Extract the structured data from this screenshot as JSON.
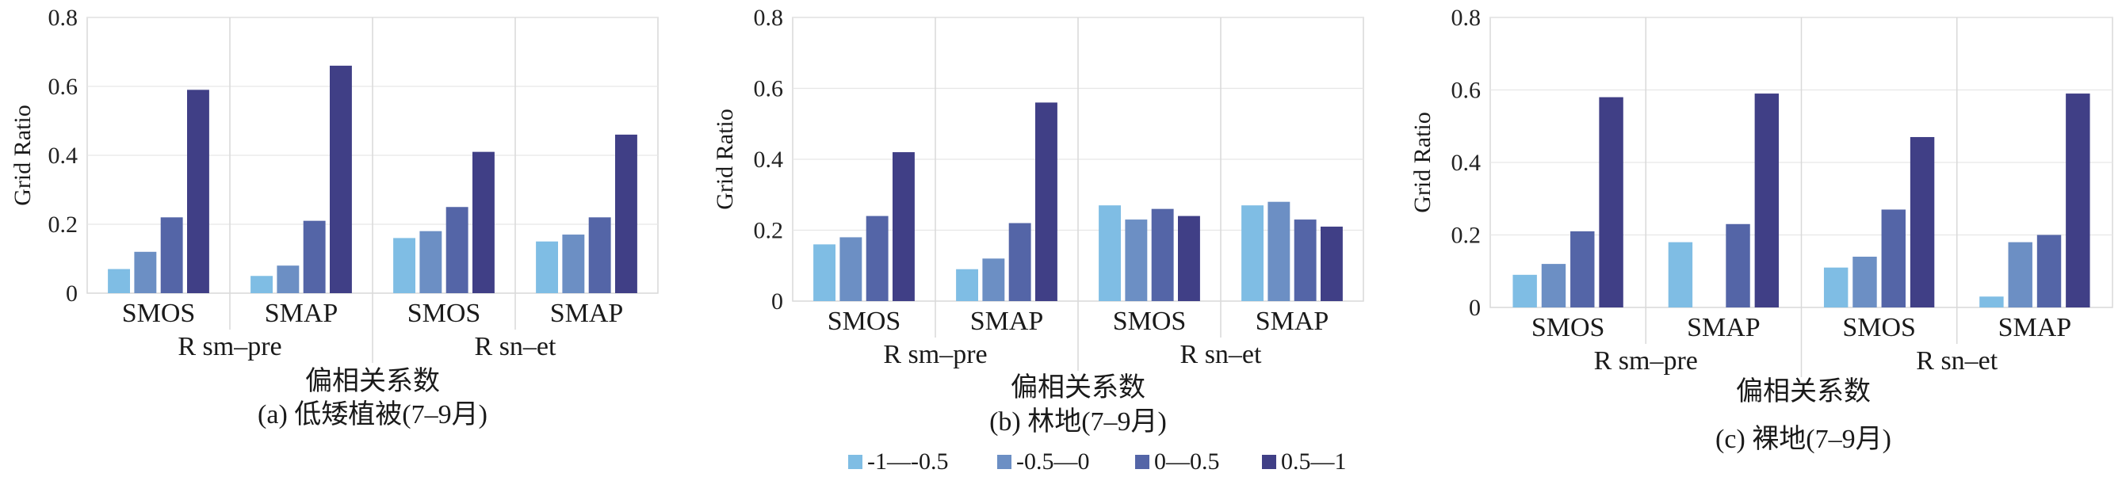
{
  "legend": {
    "entries": [
      {
        "label": "-1—-0.5",
        "color": "#7fbde4"
      },
      {
        "label": "-0.5—0",
        "color": "#6c8fc4"
      },
      {
        "label": "0—0.5",
        "color": "#5465a7"
      },
      {
        "label": "0.5—1",
        "color": "#403f86"
      }
    ]
  },
  "chart_data": [
    {
      "type": "bar",
      "caption_line1": "偏相关系数",
      "caption_line2": "(a) 低矮植被(7–9月)",
      "ylabel": "Grid Ratio",
      "ylim": [
        0,
        0.8
      ],
      "yticks": [
        "0",
        "0.2",
        "0.4",
        "0.6",
        "0.8"
      ],
      "categories": [
        "SMOS",
        "SMAP",
        "SMOS",
        "SMAP"
      ],
      "groups": [
        "R sm–pre",
        "R sn–et"
      ],
      "series": [
        {
          "name": "-1—-0.5",
          "values": [
            0.07,
            0.05,
            0.16,
            0.15
          ]
        },
        {
          "name": "-0.5—0",
          "values": [
            0.12,
            0.08,
            0.18,
            0.17
          ]
        },
        {
          "name": "0—0.5",
          "values": [
            0.22,
            0.21,
            0.25,
            0.22
          ]
        },
        {
          "name": "0.5—1",
          "values": [
            0.59,
            0.66,
            0.41,
            0.46
          ]
        }
      ]
    },
    {
      "type": "bar",
      "caption_line1": "偏相关系数",
      "caption_line2": "(b) 林地(7–9月)",
      "ylabel": "Grid Ratio",
      "ylim": [
        0,
        0.8
      ],
      "yticks": [
        "0",
        "0.2",
        "0.4",
        "0.6",
        "0.8"
      ],
      "categories": [
        "SMOS",
        "SMAP",
        "SMOS",
        "SMAP"
      ],
      "groups": [
        "R sm–pre",
        "R sn–et"
      ],
      "series": [
        {
          "name": "-1—-0.5",
          "values": [
            0.16,
            0.09,
            0.27,
            0.27
          ]
        },
        {
          "name": "-0.5—0",
          "values": [
            0.18,
            0.12,
            0.23,
            0.28
          ]
        },
        {
          "name": "0—0.5",
          "values": [
            0.24,
            0.22,
            0.26,
            0.23
          ]
        },
        {
          "name": "0.5—1",
          "values": [
            0.42,
            0.56,
            0.24,
            0.21
          ]
        }
      ]
    },
    {
      "type": "bar",
      "caption_line1": "偏相关系数",
      "caption_line2": "(c) 裸地(7–9月)",
      "ylabel": "Grid Ratio",
      "ylim": [
        0,
        0.8
      ],
      "yticks": [
        "0",
        "0.2",
        "0.4",
        "0.6",
        "0.8"
      ],
      "categories": [
        "SMOS",
        "SMAP",
        "SMOS",
        "SMAP"
      ],
      "groups": [
        "R sm–pre",
        "R sn–et"
      ],
      "series": [
        {
          "name": "-1—-0.5",
          "values": [
            0.09,
            0.18,
            0.11,
            0.03
          ]
        },
        {
          "name": "-0.5—0",
          "values": [
            0.12,
            0,
            0.14,
            0.18
          ]
        },
        {
          "name": "0—0.5",
          "values": [
            0.21,
            0.23,
            0.27,
            0.2
          ]
        },
        {
          "name": "0.5—1",
          "values": [
            0.58,
            0.59,
            0.47,
            0.59
          ]
        }
      ]
    }
  ]
}
